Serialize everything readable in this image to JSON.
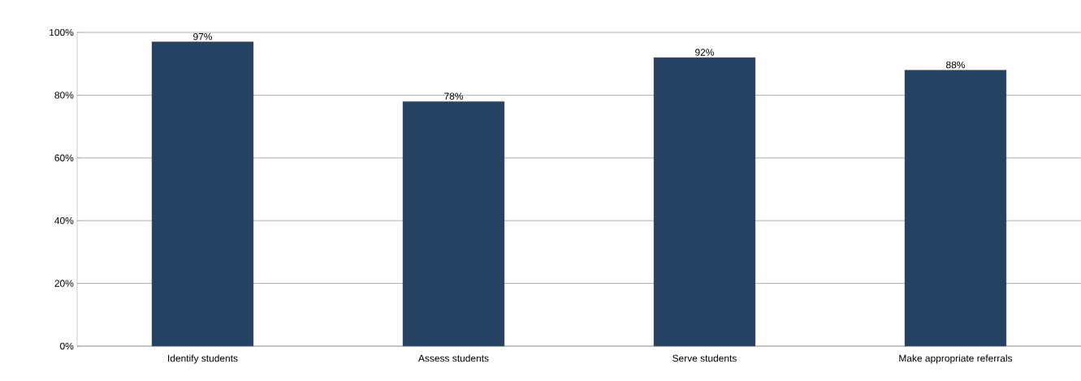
{
  "chart_data": {
    "type": "bar",
    "categories": [
      "Identify students",
      "Assess students",
      "Serve students",
      "Make appropriate referrals"
    ],
    "values": [
      97,
      78,
      92,
      88
    ],
    "value_labels": [
      "97%",
      "78%",
      "92%",
      "88%"
    ],
    "color": "#264263",
    "ylim": [
      0,
      100
    ],
    "yticks": [
      {
        "value": 0,
        "label": "0%"
      },
      {
        "value": 20,
        "label": "20%"
      },
      {
        "value": 40,
        "label": "40%"
      },
      {
        "value": 60,
        "label": "60%"
      },
      {
        "value": 80,
        "label": "80%"
      },
      {
        "value": 100,
        "label": "100%"
      }
    ],
    "grid": "y"
  }
}
